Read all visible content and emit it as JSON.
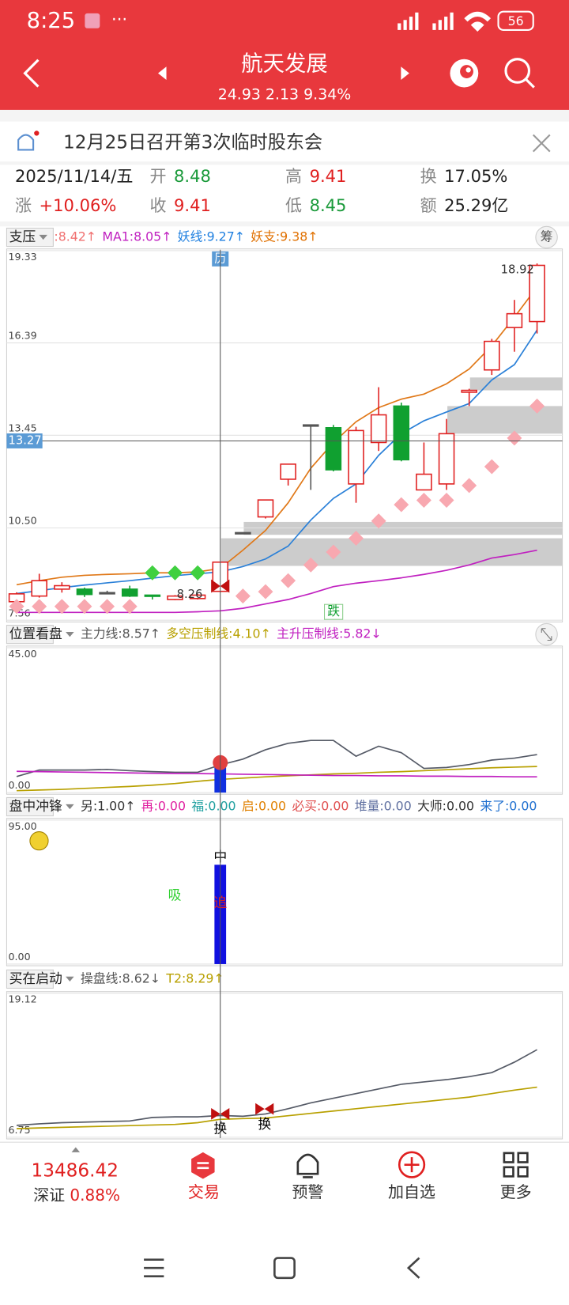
{
  "status_bar": {
    "time": "8:25",
    "battery": "56"
  },
  "header": {
    "title": "航天发展",
    "quote": "24.93 2.13 9.34%"
  },
  "notice": "12月25日召开第3次临时股东会",
  "quote": {
    "date": "2025/11/14/五",
    "items": [
      {
        "label": "开",
        "value": "8.48",
        "color": "#1a9a3a"
      },
      {
        "label": "高",
        "value": "9.41",
        "color": "#e02020"
      },
      {
        "label": "换",
        "value": "17.05%",
        "color": "#222222"
      },
      {
        "label": "涨",
        "value": "+10.06%",
        "color": "#e02020"
      },
      {
        "label": "收",
        "value": "9.41",
        "color": "#e02020"
      },
      {
        "label": "低",
        "value": "8.45",
        "color": "#1a9a3a"
      },
      {
        "label": "额",
        "value": "25.29亿",
        "color": "#222222"
      }
    ]
  },
  "panels": [
    {
      "name": "支压",
      "button": "筹",
      "indicators": [
        {
          "text": ":8.42↑",
          "color": "#f07070"
        },
        {
          "text": "MA1:8.05↑",
          "color": "#c020c0"
        },
        {
          "text": "妖线:9.27↑",
          "color": "#2080e0"
        },
        {
          "text": "妖支:9.38↑",
          "color": "#e07000"
        }
      ],
      "ylim": [
        7.56,
        19.33
      ],
      "yticks": [
        19.33,
        16.39,
        13.45,
        {
          "value": 10.5,
          "label": "10.50"
        },
        7.56
      ],
      "cursor": 13.27,
      "high_label": 18.92,
      "low_label": 8.26,
      "top_marker": "历",
      "bottom_marker": "跌",
      "up_color": "#e02020",
      "down_color": "#10a030",
      "candles": [
        {
          "open": 8.15,
          "high": 8.45,
          "low": 8.13,
          "close": 8.4
        },
        {
          "open": 8.33,
          "high": 9.04,
          "low": 8.28,
          "close": 8.82
        },
        {
          "open": 8.55,
          "high": 8.77,
          "low": 8.44,
          "close": 8.66
        },
        {
          "open": 8.55,
          "high": 8.6,
          "low": 8.3,
          "close": 8.38
        },
        {
          "open": 8.44,
          "high": 8.5,
          "low": 8.4,
          "close": 8.44
        },
        {
          "open": 8.55,
          "high": 8.66,
          "low": 8.3,
          "close": 8.33
        },
        {
          "open": 8.36,
          "high": 8.36,
          "low": 8.22,
          "close": 8.33
        },
        {
          "open": 8.22,
          "high": 8.36,
          "low": 8.2,
          "close": 8.33
        },
        {
          "open": 8.25,
          "high": 8.4,
          "low": 8.22,
          "close": 8.36
        },
        {
          "open": 8.48,
          "high": 9.41,
          "low": 8.45,
          "close": 9.41
        },
        {
          "open": 10.35,
          "high": 10.35,
          "low": 10.35,
          "close": 10.35
        },
        {
          "open": 10.85,
          "high": 11.39,
          "low": 10.8,
          "close": 11.39
        },
        {
          "open": 12.05,
          "high": 12.53,
          "low": 11.85,
          "close": 12.53
        },
        {
          "open": 13.78,
          "high": 13.78,
          "low": 11.71,
          "close": 13.78
        },
        {
          "open": 13.69,
          "high": 13.78,
          "low": 12.3,
          "close": 12.35
        },
        {
          "open": 11.9,
          "high": 13.72,
          "low": 11.3,
          "close": 13.6
        },
        {
          "open": 13.22,
          "high": 14.98,
          "low": 12.95,
          "close": 14.1
        },
        {
          "open": 14.38,
          "high": 14.49,
          "low": 12.62,
          "close": 12.67
        },
        {
          "open": 11.71,
          "high": 13.22,
          "low": 11.71,
          "close": 12.21
        },
        {
          "open": 11.9,
          "high": 13.97,
          "low": 11.71,
          "close": 13.5
        },
        {
          "open": 14.82,
          "high": 14.93,
          "low": 14.38,
          "close": 14.88
        },
        {
          "open": 15.53,
          "high": 16.52,
          "low": 15.37,
          "close": 16.44
        },
        {
          "open": 16.88,
          "high": 17.76,
          "low": 16.11,
          "close": 17.32
        },
        {
          "open": 17.07,
          "high": 18.92,
          "low": 16.69,
          "close": 18.86
        }
      ],
      "lines": [
        {
          "color": "#e07818",
          "values": [
            8.69,
            8.82,
            8.93,
            8.99,
            9.02,
            9.04,
            9.07,
            9.07,
            9.1,
            9.21,
            9.79,
            10.42,
            11.3,
            12.4,
            13.22,
            13.88,
            14.33,
            14.6,
            14.76,
            15.09,
            15.56,
            16.3,
            17.21,
            18.17
          ]
        },
        {
          "color": "#2a80d8",
          "values": [
            8.41,
            8.5,
            8.6,
            8.68,
            8.75,
            8.82,
            8.9,
            8.98,
            9.04,
            9.1,
            9.27,
            9.51,
            9.92,
            10.75,
            11.44,
            11.9,
            12.81,
            13.5,
            13.91,
            14.19,
            14.46,
            15.21,
            15.7,
            16.8
          ]
        },
        {
          "color": "#c020c0",
          "values": [
            7.81,
            7.81,
            7.81,
            7.81,
            7.81,
            7.81,
            7.81,
            7.81,
            7.83,
            7.86,
            7.94,
            8.08,
            8.22,
            8.41,
            8.63,
            8.74,
            8.82,
            8.91,
            9.02,
            9.15,
            9.32,
            9.54,
            9.65,
            9.79
          ]
        }
      ],
      "diamonds": [
        {
          "color": "#f8a8b0",
          "values": [
            8.0,
            8.0,
            8.0,
            8.0,
            8.0,
            8.0,
            null,
            null,
            null,
            null,
            8.33,
            8.47,
            8.82,
            9.32,
            9.73,
            10.17,
            10.72,
            11.24,
            11.38,
            11.38,
            11.85,
            12.45,
            13.36,
            14.38
          ]
        },
        {
          "color": "#40d040",
          "values": [
            null,
            null,
            null,
            null,
            null,
            null,
            9.07,
            9.07,
            9.07,
            null,
            null,
            null,
            null,
            null,
            null,
            null,
            null,
            null,
            null,
            null,
            null,
            null,
            null,
            null
          ]
        }
      ],
      "bands": [
        {
          "from": 9,
          "low": 9.29,
          "high": 10.17
        },
        {
          "from": 10,
          "low": 10.28,
          "high": 10.69
        },
        {
          "from": 19,
          "low": 13.5,
          "high": 14.38
        },
        {
          "from": 20,
          "low": 14.88,
          "high": 15.29
        }
      ],
      "band_color": "#cccccc"
    },
    {
      "name": "位置看盘",
      "indicators": [
        {
          "text": "主力线:8.57↑",
          "color": "#555555"
        },
        {
          "text": "多空压制线:4.10↑",
          "color": "#b8a000"
        },
        {
          "text": "主升压制线:5.82↓",
          "color": "#c020c0"
        }
      ],
      "ylim": [
        0,
        45
      ],
      "yticks": [
        {
          "value": 45,
          "label": "45.00"
        },
        {
          "value": 0,
          "label": "0.00"
        }
      ],
      "lines": [
        {
          "color": "#555a66",
          "values": [
            5.0,
            7.0,
            7.0,
            7.0,
            7.2,
            6.8,
            6.5,
            6.3,
            6.3,
            8.57,
            10.4,
            13.3,
            15.3,
            16.2,
            16.2,
            11.3,
            14.4,
            12.4,
            7.5,
            7.8,
            8.7,
            10.1,
            10.7,
            11.8
          ]
        },
        {
          "color": "#b8a000",
          "values": [
            0.6,
            0.8,
            1.0,
            1.3,
            1.6,
            1.9,
            2.3,
            2.8,
            3.5,
            4.1,
            4.5,
            4.9,
            5.2,
            5.5,
            5.8,
            6.0,
            6.3,
            6.5,
            6.8,
            7.1,
            7.4,
            7.7,
            7.9,
            8.1
          ]
        },
        {
          "color": "#c020c0",
          "values": [
            6.6,
            6.5,
            6.4,
            6.3,
            6.2,
            6.1,
            6.0,
            5.95,
            5.9,
            5.82,
            5.7,
            5.6,
            5.5,
            5.4,
            5.3,
            5.3,
            5.2,
            5.2,
            5.1,
            5.1,
            5.0,
            5.0,
            4.9,
            4.9
          ]
        }
      ],
      "bars": {
        "color": "#1030e0",
        "values": [
          null,
          null,
          null,
          null,
          null,
          null,
          null,
          null,
          null,
          9.0,
          null,
          null,
          null,
          null,
          null,
          null,
          null,
          null,
          null,
          null,
          null,
          null,
          null,
          null
        ]
      }
    },
    {
      "name": "盘中冲锋",
      "indicators": [
        {
          "text": "另:1.00↑",
          "color": "#333333"
        },
        {
          "text": "再:0.00",
          "color": "#e020a0"
        },
        {
          "text": "福:0.00",
          "color": "#20a0a0"
        },
        {
          "text": "启:0.00",
          "color": "#e08000"
        },
        {
          "text": "必买:0.00",
          "color": "#e05050"
        },
        {
          "text": "堆量:0.00",
          "color": "#6070a0"
        },
        {
          "text": "大师:0.00",
          "color": "#333333"
        },
        {
          "text": "来了:0.00",
          "color": "#2070d0"
        }
      ],
      "ylim": [
        0,
        95
      ],
      "yticks": [
        {
          "value": 95,
          "label": "95.00"
        },
        {
          "value": 0,
          "label": "0.00"
        }
      ],
      "bars": {
        "color": "#1010e0",
        "values": [
          null,
          null,
          null,
          null,
          null,
          null,
          null,
          null,
          null,
          65.5,
          null,
          null,
          null,
          null,
          null,
          null,
          null,
          null,
          null,
          null,
          null,
          null,
          null,
          null
        ]
      },
      "annotations": [
        {
          "text": "吸",
          "color": "#30d030"
        },
        {
          "text": "中",
          "color": "#000000"
        },
        {
          "text": "追",
          "color": "#e02020"
        }
      ]
    },
    {
      "name": "买在启动",
      "indicators": [
        {
          "text": "操盘线:8.62↓",
          "color": "#555555"
        },
        {
          "text": "T2:8.29↑",
          "color": "#b8a000"
        }
      ],
      "ylim": [
        6.75,
        19.12
      ],
      "yticks": [
        19.12,
        6.75
      ],
      "lines": [
        {
          "color": "#555a66",
          "values": [
            7.77,
            7.9,
            8.0,
            8.05,
            8.1,
            8.15,
            8.45,
            8.5,
            8.5,
            8.62,
            8.55,
            8.75,
            9.2,
            9.7,
            10.1,
            10.5,
            10.9,
            11.3,
            11.5,
            11.7,
            11.95,
            12.3,
            13.2,
            14.27
          ]
        },
        {
          "color": "#b8a000",
          "values": [
            7.49,
            7.55,
            7.6,
            7.65,
            7.7,
            7.75,
            7.8,
            7.85,
            8.0,
            8.29,
            8.35,
            8.4,
            8.6,
            8.8,
            9.0,
            9.2,
            9.4,
            9.6,
            9.8,
            10.0,
            10.2,
            10.5,
            10.8,
            11.05
          ]
        }
      ],
      "annotations": [
        {
          "text": "换",
          "color": "#000000"
        },
        {
          "text": "换",
          "color": "#000000"
        }
      ]
    }
  ],
  "footer": {
    "index_value": "13486.42",
    "index_name": "深证",
    "index_change": "0.88%",
    "tabs": [
      "交易",
      "预警",
      "加自选",
      "更多"
    ]
  }
}
